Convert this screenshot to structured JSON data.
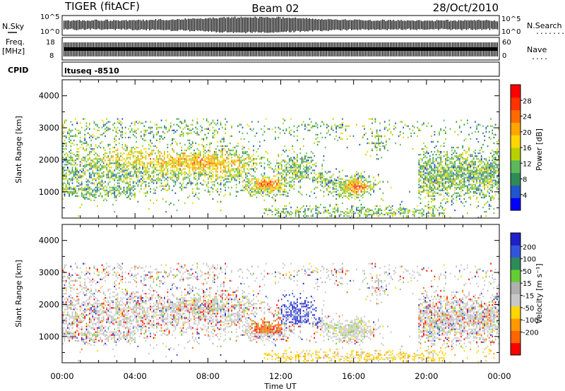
{
  "header": {
    "station": "TIGER (fitACF)",
    "beam": "Beam 02",
    "date": "28/Oct/2010"
  },
  "strip_labels": {
    "nsky": "N.Sky",
    "nsearch": "N.Search",
    "nsearch_dots": ".......",
    "freq_top": "Freq.",
    "freq_unit": "[MHz]",
    "nave": "Nave",
    "nave_dots": "....",
    "cpid": "CPID",
    "cpid_text": "ltuseq -8510"
  },
  "strip_ticks": {
    "noise_left": [
      "10^5",
      "10^0"
    ],
    "noise_right": [
      "10^5",
      "10^0"
    ],
    "freq_left": [
      "18",
      "8"
    ],
    "nave_right": [
      "60",
      "0"
    ]
  },
  "colors": {
    "power": [
      "#0000ff",
      "#2255cc",
      "#2e8b57",
      "#5cb85c",
      "#b8d000",
      "#ffd700",
      "#ffa500",
      "#ff6a00",
      "#ff3300",
      "#ff0000"
    ],
    "velocity": [
      "#2020c8",
      "#3355dd",
      "#2e8b57",
      "#66cc33",
      "#b0b0b0",
      "#c8c8c8",
      "#ffd700",
      "#ff9900",
      "#ff6600",
      "#ff0000"
    ]
  },
  "chart_data": [
    {
      "type": "heatmap",
      "name": "power",
      "ylabel": "Slant Range [km]",
      "xlabel": "",
      "x_range_hours": [
        0,
        24
      ],
      "ylim": [
        180,
        4500
      ],
      "y_ticks": [
        "1000",
        "2000",
        "3000",
        "4000"
      ],
      "colorbar_label": "Power [dB]",
      "colorbar_ticks": [
        "4",
        "8",
        "12",
        "16",
        "20",
        "24",
        "28"
      ],
      "colorbar_range": [
        0,
        32
      ]
    },
    {
      "type": "heatmap",
      "name": "velocity",
      "ylabel": "Slant Range [km]",
      "xlabel": "Time UT",
      "x_range_hours": [
        0,
        24
      ],
      "x_ticks": [
        "00:00",
        "04:00",
        "08:00",
        "12:00",
        "16:00",
        "20:00",
        "00:00"
      ],
      "ylim": [
        180,
        4500
      ],
      "y_ticks": [
        "1000",
        "2000",
        "3000",
        "4000"
      ],
      "colorbar_label": "Velocity [m s⁻¹]",
      "colorbar_ticks": [
        "200",
        "100",
        "50",
        "15",
        "-15",
        "-50",
        "-100",
        "-200"
      ]
    }
  ]
}
